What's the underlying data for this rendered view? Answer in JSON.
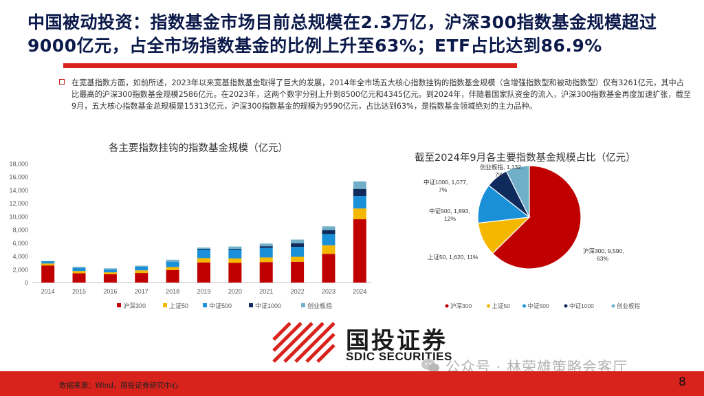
{
  "title": "中国被动投资：指数基金市场目前总规模在2.3万亿，沪深300指数基金规模超过9000亿元，占全市场指数基金的比例上升至63%；ETF占比达到86.9%",
  "paragraph": "在宽基指数方面，如前所述，2023年以来宽基指数基金取得了巨大的发展，2014年全市场五大核心指数挂钩的指数基金规模（含增强指数型和被动指数型）仅有3261亿元，其中占比最高的沪深300指数基金规模2586亿元。在2023年，这两个数字分别上升到8500亿元和4345亿元。到2024年，伴随着国家队资金的流入，沪深300指数基金再度加速扩张，截至9月，五大核心指数基金总规模是15313亿元，沪深300指数基金的规模为9590亿元，占比达到63%，是指数基金领域绝对的主力品种。",
  "colors": {
    "accent": "#d8221c",
    "title": "#0b1a4a",
    "s1": "#c00000",
    "s2": "#f5b800",
    "s3": "#1a90d8",
    "s4": "#0f2a5c",
    "s5": "#6fb0c8"
  },
  "chart_data": [
    {
      "type": "bar",
      "stacked": true,
      "title": "各主要指数挂钩的指数基金规模（亿元）",
      "categories": [
        "2014",
        "2015",
        "2016",
        "2017",
        "2018",
        "2019",
        "2020",
        "2021",
        "2022",
        "2023",
        "2024"
      ],
      "ylim": [
        0,
        18000
      ],
      "yticks": [
        "0",
        "2,000",
        "4,000",
        "6,000",
        "8,000",
        "10,000",
        "12,000",
        "14,000",
        "16,000",
        "18,000"
      ],
      "series": [
        {
          "name": "沪深300",
          "values": [
            2586,
            1400,
            1250,
            1450,
            1900,
            3050,
            3000,
            3100,
            3150,
            4345,
            9590
          ]
        },
        {
          "name": "上证50",
          "values": [
            300,
            350,
            300,
            400,
            450,
            650,
            650,
            700,
            750,
            1300,
            1620
          ]
        },
        {
          "name": "中证500",
          "values": [
            350,
            450,
            420,
            550,
            800,
            1300,
            1350,
            1450,
            1500,
            1700,
            1893
          ]
        },
        {
          "name": "中证1000",
          "values": [
            0,
            0,
            0,
            0,
            0,
            100,
            100,
            250,
            550,
            600,
            1077
          ]
        },
        {
          "name": "创业板指",
          "values": [
            25,
            200,
            180,
            150,
            300,
            200,
            350,
            400,
            550,
            555,
            1132
          ]
        }
      ],
      "legend": "bottom"
    },
    {
      "type": "pie",
      "title": "截至2024年9月各主要指数基金规模占比（亿元）",
      "slices": [
        {
          "name": "沪深300",
          "value": 9590,
          "label": "沪深300, 9,590, 63%"
        },
        {
          "name": "上证50",
          "value": 1620,
          "label": "上证50, 1,620, 11%"
        },
        {
          "name": "中证500",
          "value": 1893,
          "label": "中证500, 1,893, 12%"
        },
        {
          "name": "中证1000",
          "value": 1077,
          "label": "中证1000, 1,077, 7%"
        },
        {
          "name": "创业板指",
          "value": 1132,
          "label": "创业板指, 1,132, 7%"
        }
      ],
      "legend": "bottom"
    }
  ],
  "logo": {
    "name": "国投证券",
    "english": "SDIC SECURITIES"
  },
  "watermark": "公众号 · 林荣雄策略会客厅",
  "footer": {
    "source": "数据来源：Wind，国投证券研究中心",
    "page": "8"
  }
}
